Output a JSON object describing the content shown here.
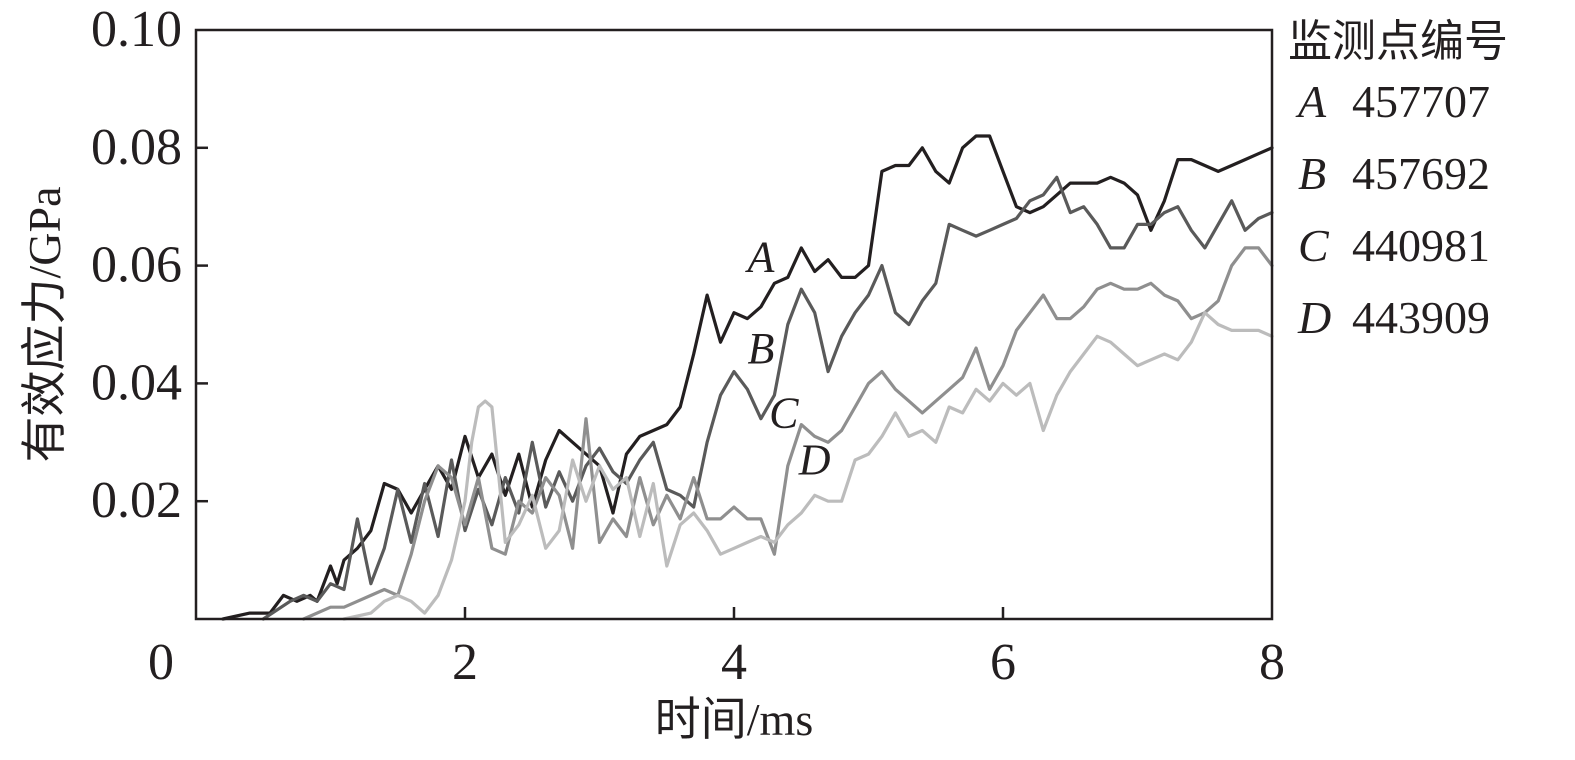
{
  "chart_data": {
    "type": "line",
    "title": "",
    "xlabel": "时间/ms",
    "ylabel": "有效应力/GPa",
    "xlim": [
      0,
      8
    ],
    "ylim": [
      0,
      0.1
    ],
    "xticks": [
      0,
      2,
      4,
      6,
      8
    ],
    "xtick_labels": [
      "0",
      "2",
      "4",
      "6",
      "8"
    ],
    "yticks": [
      0.02,
      0.04,
      0.06,
      0.08,
      0.1
    ],
    "ytick_labels": [
      "0.02",
      "0.04",
      "0.06",
      "0.08",
      "0.10"
    ],
    "grid": false,
    "legend": {
      "title": "监测点编号",
      "position": "right",
      "entries": [
        {
          "key": "A",
          "value": "457707"
        },
        {
          "key": "B",
          "value": "457692"
        },
        {
          "key": "C",
          "value": "440981"
        },
        {
          "key": "D",
          "value": "443909"
        }
      ]
    },
    "series": [
      {
        "name": "A",
        "color": "#231f20",
        "x": [
          0.2,
          0.4,
          0.55,
          0.65,
          0.75,
          0.85,
          0.9,
          1.0,
          1.05,
          1.1,
          1.2,
          1.3,
          1.4,
          1.5,
          1.6,
          1.7,
          1.8,
          1.9,
          2.0,
          2.1,
          2.2,
          2.3,
          2.4,
          2.5,
          2.6,
          2.7,
          2.8,
          2.9,
          3.0,
          3.1,
          3.2,
          3.3,
          3.4,
          3.5,
          3.6,
          3.7,
          3.8,
          3.9,
          4.0,
          4.1,
          4.2,
          4.3,
          4.4,
          4.5,
          4.6,
          4.7,
          4.8,
          4.9,
          5.0,
          5.1,
          5.2,
          5.3,
          5.4,
          5.5,
          5.6,
          5.7,
          5.8,
          5.9,
          6.0,
          6.1,
          6.2,
          6.3,
          6.4,
          6.5,
          6.6,
          6.7,
          6.8,
          6.9,
          7.0,
          7.1,
          7.2,
          7.3,
          7.4,
          7.5,
          7.6,
          7.7,
          7.8,
          7.9,
          8.0
        ],
        "values": [
          0.0,
          0.001,
          0.001,
          0.004,
          0.003,
          0.004,
          0.003,
          0.009,
          0.006,
          0.01,
          0.012,
          0.015,
          0.023,
          0.022,
          0.018,
          0.022,
          0.026,
          0.022,
          0.031,
          0.024,
          0.028,
          0.021,
          0.028,
          0.019,
          0.027,
          0.032,
          0.03,
          0.028,
          0.026,
          0.018,
          0.028,
          0.031,
          0.032,
          0.033,
          0.036,
          0.045,
          0.055,
          0.047,
          0.052,
          0.051,
          0.053,
          0.057,
          0.058,
          0.063,
          0.059,
          0.061,
          0.058,
          0.058,
          0.06,
          0.076,
          0.077,
          0.077,
          0.08,
          0.076,
          0.074,
          0.08,
          0.082,
          0.082,
          0.076,
          0.07,
          0.069,
          0.07,
          0.072,
          0.074,
          0.074,
          0.074,
          0.075,
          0.074,
          0.072,
          0.066,
          0.071,
          0.078,
          0.078,
          0.077,
          0.076,
          0.077,
          0.078,
          0.079,
          0.08
        ]
      },
      {
        "name": "B",
        "color": "#5a5a5a",
        "x": [
          0.5,
          0.7,
          0.8,
          0.9,
          1.0,
          1.1,
          1.2,
          1.3,
          1.4,
          1.5,
          1.6,
          1.7,
          1.8,
          1.9,
          2.0,
          2.1,
          2.2,
          2.3,
          2.4,
          2.5,
          2.6,
          2.7,
          2.8,
          2.9,
          3.0,
          3.1,
          3.2,
          3.3,
          3.4,
          3.5,
          3.6,
          3.7,
          3.8,
          3.9,
          4.0,
          4.1,
          4.2,
          4.3,
          4.4,
          4.5,
          4.6,
          4.7,
          4.8,
          4.9,
          5.0,
          5.1,
          5.2,
          5.3,
          5.4,
          5.5,
          5.6,
          5.7,
          5.8,
          5.9,
          6.0,
          6.1,
          6.2,
          6.3,
          6.4,
          6.5,
          6.6,
          6.7,
          6.8,
          6.9,
          7.0,
          7.1,
          7.2,
          7.3,
          7.4,
          7.5,
          7.6,
          7.7,
          7.8,
          7.9,
          8.0
        ],
        "values": [
          0.0,
          0.003,
          0.004,
          0.003,
          0.006,
          0.005,
          0.017,
          0.006,
          0.012,
          0.022,
          0.013,
          0.023,
          0.014,
          0.027,
          0.015,
          0.022,
          0.016,
          0.024,
          0.018,
          0.03,
          0.019,
          0.025,
          0.02,
          0.026,
          0.029,
          0.025,
          0.023,
          0.027,
          0.03,
          0.022,
          0.021,
          0.019,
          0.03,
          0.038,
          0.042,
          0.039,
          0.034,
          0.038,
          0.05,
          0.056,
          0.052,
          0.042,
          0.048,
          0.052,
          0.055,
          0.06,
          0.052,
          0.05,
          0.054,
          0.057,
          0.067,
          0.066,
          0.065,
          0.066,
          0.067,
          0.068,
          0.071,
          0.072,
          0.075,
          0.069,
          0.07,
          0.067,
          0.063,
          0.063,
          0.067,
          0.067,
          0.069,
          0.07,
          0.066,
          0.063,
          0.067,
          0.071,
          0.066,
          0.068,
          0.069
        ]
      },
      {
        "name": "C",
        "color": "#8f8f8f",
        "x": [
          0.8,
          1.0,
          1.1,
          1.2,
          1.3,
          1.4,
          1.5,
          1.6,
          1.7,
          1.8,
          1.9,
          2.0,
          2.1,
          2.2,
          2.3,
          2.4,
          2.5,
          2.6,
          2.7,
          2.8,
          2.9,
          3.0,
          3.1,
          3.2,
          3.3,
          3.4,
          3.5,
          3.6,
          3.7,
          3.8,
          3.9,
          4.0,
          4.1,
          4.2,
          4.3,
          4.4,
          4.5,
          4.6,
          4.7,
          4.8,
          4.9,
          5.0,
          5.1,
          5.2,
          5.3,
          5.4,
          5.5,
          5.6,
          5.7,
          5.8,
          5.9,
          6.0,
          6.1,
          6.2,
          6.3,
          6.4,
          6.5,
          6.6,
          6.7,
          6.8,
          6.9,
          7.0,
          7.1,
          7.2,
          7.3,
          7.4,
          7.5,
          7.6,
          7.7,
          7.8,
          7.9,
          8.0
        ],
        "values": [
          0.0,
          0.002,
          0.002,
          0.003,
          0.004,
          0.005,
          0.004,
          0.011,
          0.02,
          0.026,
          0.024,
          0.016,
          0.024,
          0.012,
          0.011,
          0.02,
          0.018,
          0.024,
          0.021,
          0.012,
          0.034,
          0.013,
          0.017,
          0.014,
          0.024,
          0.016,
          0.021,
          0.017,
          0.024,
          0.017,
          0.017,
          0.019,
          0.017,
          0.017,
          0.011,
          0.026,
          0.033,
          0.031,
          0.03,
          0.032,
          0.036,
          0.04,
          0.042,
          0.039,
          0.037,
          0.035,
          0.037,
          0.039,
          0.041,
          0.046,
          0.039,
          0.043,
          0.049,
          0.052,
          0.055,
          0.051,
          0.051,
          0.053,
          0.056,
          0.057,
          0.056,
          0.056,
          0.057,
          0.055,
          0.054,
          0.051,
          0.052,
          0.054,
          0.06,
          0.063,
          0.063,
          0.06
        ]
      },
      {
        "name": "D",
        "color": "#bcbcbc",
        "x": [
          1.1,
          1.3,
          1.4,
          1.5,
          1.6,
          1.7,
          1.8,
          1.9,
          2.0,
          2.05,
          2.1,
          2.15,
          2.2,
          2.3,
          2.4,
          2.5,
          2.6,
          2.7,
          2.8,
          2.9,
          3.0,
          3.1,
          3.2,
          3.3,
          3.4,
          3.5,
          3.6,
          3.7,
          3.8,
          3.9,
          4.0,
          4.1,
          4.2,
          4.3,
          4.4,
          4.5,
          4.6,
          4.7,
          4.8,
          4.9,
          5.0,
          5.1,
          5.2,
          5.3,
          5.4,
          5.5,
          5.6,
          5.7,
          5.8,
          5.9,
          6.0,
          6.1,
          6.2,
          6.3,
          6.4,
          6.5,
          6.6,
          6.7,
          6.8,
          6.9,
          7.0,
          7.1,
          7.2,
          7.3,
          7.4,
          7.5,
          7.6,
          7.7,
          7.8,
          7.9,
          8.0
        ],
        "values": [
          0.0,
          0.001,
          0.003,
          0.004,
          0.003,
          0.001,
          0.004,
          0.01,
          0.02,
          0.03,
          0.036,
          0.037,
          0.036,
          0.013,
          0.016,
          0.021,
          0.012,
          0.015,
          0.027,
          0.02,
          0.026,
          0.022,
          0.024,
          0.014,
          0.023,
          0.009,
          0.016,
          0.018,
          0.015,
          0.011,
          0.012,
          0.013,
          0.014,
          0.013,
          0.016,
          0.018,
          0.021,
          0.02,
          0.02,
          0.027,
          0.028,
          0.031,
          0.035,
          0.031,
          0.032,
          0.03,
          0.036,
          0.035,
          0.039,
          0.037,
          0.04,
          0.038,
          0.04,
          0.032,
          0.038,
          0.042,
          0.045,
          0.048,
          0.047,
          0.045,
          0.043,
          0.044,
          0.045,
          0.044,
          0.047,
          0.052,
          0.05,
          0.049,
          0.049,
          0.049,
          0.048
        ]
      }
    ],
    "series_labels": [
      {
        "text": "A",
        "x": 4.2,
        "y": 0.059
      },
      {
        "text": "B",
        "x": 4.2,
        "y": 0.0435
      },
      {
        "text": "C",
        "x": 4.37,
        "y": 0.0325
      },
      {
        "text": "D",
        "x": 4.6,
        "y": 0.0245
      }
    ]
  }
}
